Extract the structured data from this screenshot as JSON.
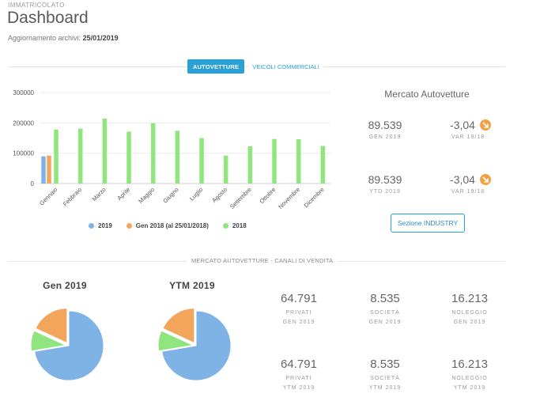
{
  "header": {
    "eyebrow": "IMMATRICOLATO",
    "title": "Dashboard",
    "updated_label": "Aggiornamento archivi: ",
    "updated_date": "25/01/2019"
  },
  "tabs": [
    {
      "label": "AUTOVETTURE",
      "active": true
    },
    {
      "label": "VEICOLI COMMERCIALI",
      "active": false
    }
  ],
  "colors": {
    "accent": "#2aa0d8",
    "series_2019": "#7fb2e5",
    "series_gen2018": "#f3a55b",
    "series_2018": "#90e57e",
    "arrow": "#f3a042"
  },
  "market": {
    "title": "Mercato Autovetture",
    "kpis": [
      {
        "value": "89.539",
        "label": "GEN 2019"
      },
      {
        "value": "-3,04",
        "label": "VAR 19/18",
        "icon": "arrow-down-right-icon"
      },
      {
        "value": "89.539",
        "label": "YTD 2019"
      },
      {
        "value": "-3,04",
        "label": "VAR 19/18",
        "icon": "arrow-down-right-icon"
      }
    ],
    "button": "Sezione INDUSTRY"
  },
  "chart_data": [
    {
      "type": "bar",
      "categories": [
        "Gennaio",
        "Febbraio",
        "Marzo",
        "Aprile",
        "Maggio",
        "Giugno",
        "Luglio",
        "Agosto",
        "Settembre",
        "Ottobre",
        "Novembre",
        "Dicembre"
      ],
      "series": [
        {
          "name": "2019",
          "values": [
            89539,
            null,
            null,
            null,
            null,
            null,
            null,
            null,
            null,
            null,
            null,
            null
          ]
        },
        {
          "name": "Gen 2018 (al 25/01/2018)",
          "values": [
            92000,
            null,
            null,
            null,
            null,
            null,
            null,
            null,
            null,
            null,
            null,
            null
          ]
        },
        {
          "name": "2018",
          "values": [
            178000,
            181000,
            214000,
            171000,
            199000,
            174000,
            150000,
            92000,
            123000,
            147000,
            146000,
            124000
          ]
        }
      ],
      "yticks": [
        "0",
        "100000",
        "200000",
        "300000"
      ],
      "ylim": [
        0,
        300000
      ],
      "legend_position": "bottom"
    },
    {
      "type": "pie",
      "title": "Gen 2019",
      "labels": [
        "PRIVATI",
        "SOCIETÀ",
        "NOLEGGIO"
      ],
      "values": [
        64791,
        8535,
        16213
      ]
    },
    {
      "type": "pie",
      "title": "YTM 2019",
      "labels": [
        "PRIVATI",
        "SOCIETÀ",
        "NOLEGGIO"
      ],
      "values": [
        64791,
        8535,
        16213
      ]
    }
  ],
  "channels": {
    "section_label": "MERCATO AUTOVETTURE - CANALI DI VENDITA",
    "rows": [
      [
        {
          "value": "64.791",
          "label1": "PRIVATI",
          "label2": "GEN 2019"
        },
        {
          "value": "8.535",
          "label1": "SOCIETÀ",
          "label2": "GEN 2019"
        },
        {
          "value": "16.213",
          "label1": "NOLEGGIO",
          "label2": "GEN 2019"
        }
      ],
      [
        {
          "value": "64.791",
          "label1": "PRIVATI",
          "label2": "YTM 2019"
        },
        {
          "value": "8.535",
          "label1": "SOCIETÀ",
          "label2": "YTM 2019"
        },
        {
          "value": "16.213",
          "label1": "NOLEGGIO",
          "label2": "YTM 2019"
        }
      ]
    ]
  }
}
